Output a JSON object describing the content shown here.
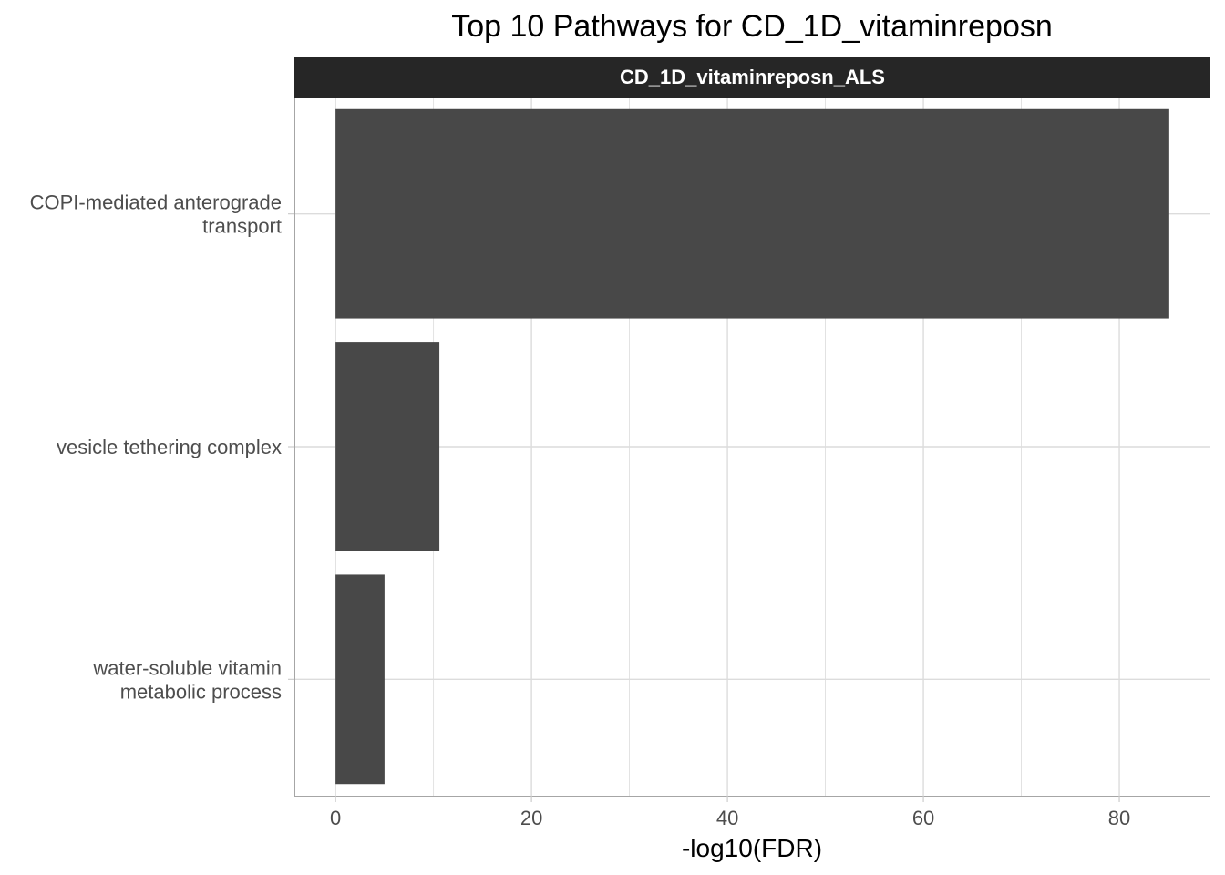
{
  "chart_data": {
    "type": "bar",
    "orientation": "horizontal",
    "title": "Top 10 Pathways for CD_1D_vitaminreposn",
    "facet_label": "CD_1D_vitaminreposn_ALS",
    "xlabel": "-log10(FDR)",
    "ylabel": "",
    "xlim": [
      -4.2,
      89.3
    ],
    "x_ticks": [
      0,
      20,
      40,
      60,
      80
    ],
    "categories": [
      [
        "COPI-mediated anterograde",
        "transport"
      ],
      [
        "vesicle tethering complex"
      ],
      [
        "water-soluble vitamin",
        "metabolic process"
      ]
    ],
    "values": [
      85.1,
      10.6,
      5.0
    ],
    "grid": true,
    "bar_color": "#484848",
    "strip_color": "#262626",
    "grid_color": "#dcdcdc",
    "panel_border_color": "#a6a6a6"
  }
}
